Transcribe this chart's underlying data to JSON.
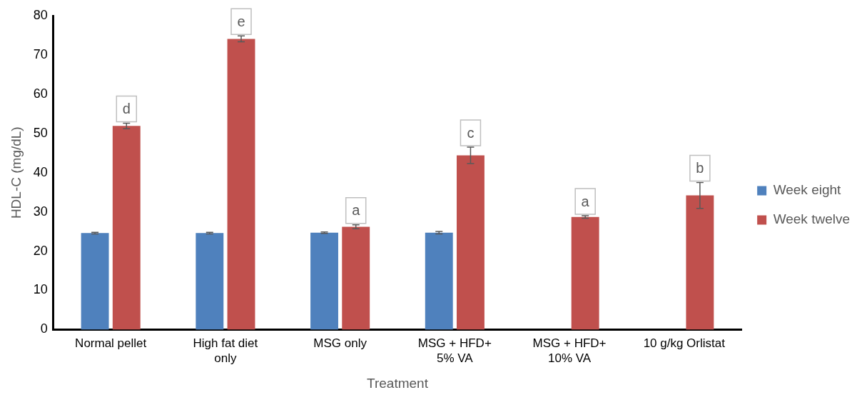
{
  "chart_data": {
    "type": "bar",
    "xlabel": "Treatment",
    "ylabel": "HDL-C (mg/dL)",
    "categories": [
      "Normal pellet",
      "High fat diet only",
      "MSG only",
      "MSG + HFD+ 5% VA",
      "MSG + HFD+ 10% VA",
      "10 g/kg Orlistat"
    ],
    "series": [
      {
        "name": "Week eight",
        "color": "#4f81bd",
        "values": [
          24.6,
          24.6,
          24.7,
          24.7,
          null,
          null
        ],
        "errors": [
          0.2,
          0.2,
          0.2,
          0.3,
          null,
          null
        ]
      },
      {
        "name": "Week twelve",
        "color": "#c0504d",
        "values": [
          51.9,
          74.1,
          26.2,
          44.4,
          28.7,
          34.2
        ],
        "errors": [
          0.7,
          0.75,
          0.5,
          2.1,
          0.3,
          3.3
        ]
      }
    ],
    "ylim": [
      0,
      80
    ],
    "yticks": [
      0,
      10,
      20,
      30,
      40,
      50,
      60,
      70,
      80
    ],
    "grid": false,
    "legend": "right",
    "annotations": [
      {
        "text": "d",
        "x": "Normal pellet",
        "y": 51.9
      },
      {
        "text": "e",
        "x": "High fat diet only",
        "y": 74.1
      },
      {
        "text": "a",
        "x": "MSG only",
        "y": 26.2
      },
      {
        "text": "c",
        "x": "MSG + HFD+ 5% VA",
        "y": 44.4
      },
      {
        "text": "a",
        "x": "MSG + HFD+ 10% VA",
        "y": 28.7
      },
      {
        "text": "b",
        "x": "10 g/kg Orlistat",
        "y": 34.2
      }
    ]
  }
}
